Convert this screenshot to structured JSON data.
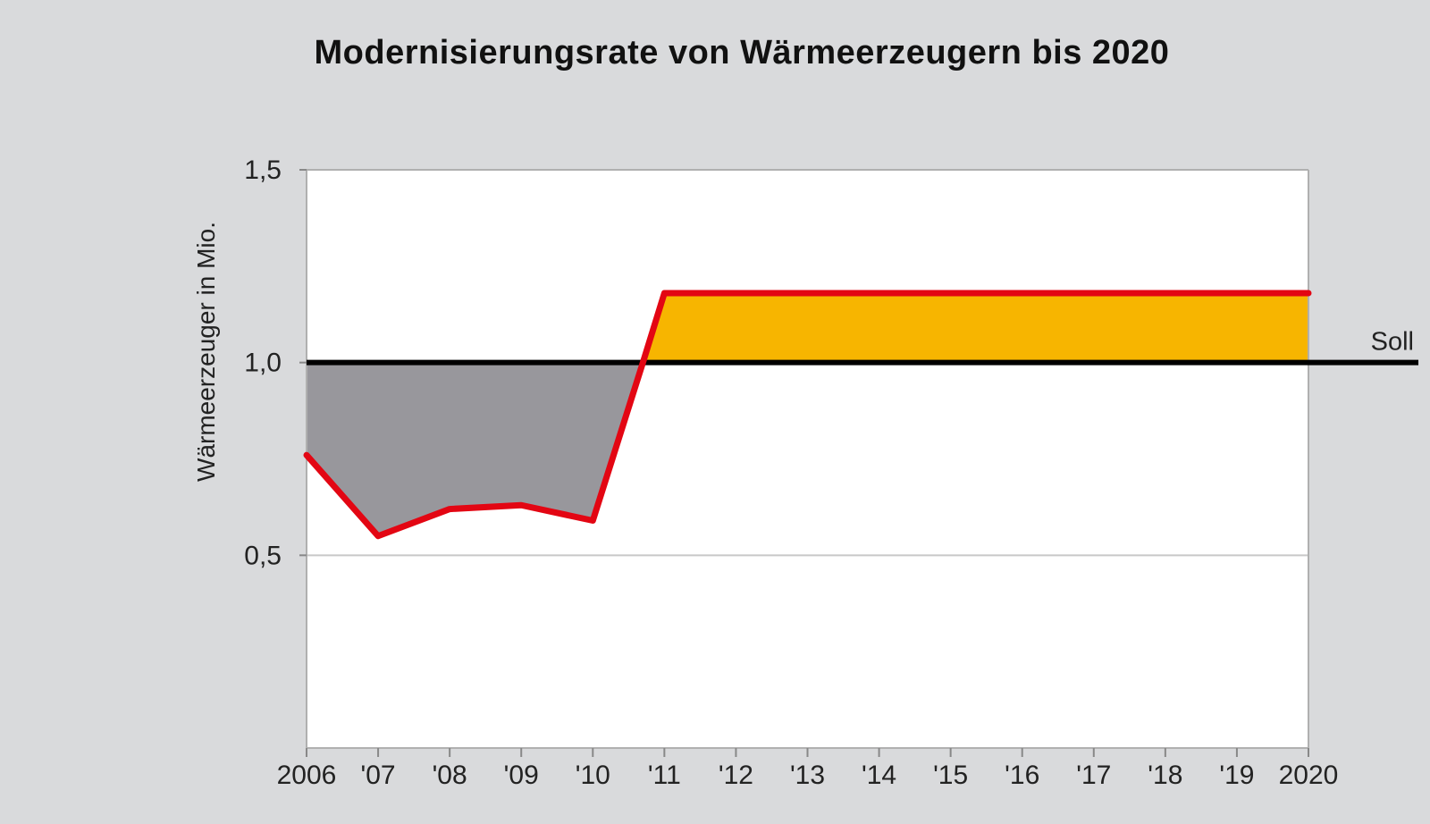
{
  "chart_data": {
    "type": "line",
    "title": "Modernisierungsrate von Wärmeerzeugern bis 2020",
    "xlabel": "",
    "ylabel": "Wärmeerzeuger in Mio.",
    "x_tick_labels": [
      "2006",
      "'07",
      "'08",
      "'09",
      "'10",
      "'11",
      "'12",
      "'13",
      "'14",
      "'15",
      "'16",
      "'17",
      "'18",
      "'19",
      "2020"
    ],
    "x_range": [
      2006,
      2020
    ],
    "y_ticks": [
      {
        "value": 0.5,
        "label": "0,5"
      },
      {
        "value": 1.0,
        "label": "1,0"
      },
      {
        "value": 1.5,
        "label": "1,5"
      }
    ],
    "ylim": [
      0,
      1.5
    ],
    "grid": "horizontal",
    "reference_line": {
      "label": "Soll",
      "value": 1.0,
      "color": "#000000"
    },
    "series": [
      {
        "color": "#e30613",
        "points": [
          {
            "x": 2006,
            "y": 0.76
          },
          {
            "x": 2007,
            "y": 0.55
          },
          {
            "x": 2008,
            "y": 0.62
          },
          {
            "x": 2009,
            "y": 0.63
          },
          {
            "x": 2010,
            "y": 0.59
          },
          {
            "x": 2010.7,
            "y": 1.0
          },
          {
            "x": 2011,
            "y": 1.18
          },
          {
            "x": 2020,
            "y": 1.18
          }
        ]
      }
    ],
    "fills": {
      "below_target_color": "#98979c",
      "above_target_color": "#f7b500"
    }
  }
}
